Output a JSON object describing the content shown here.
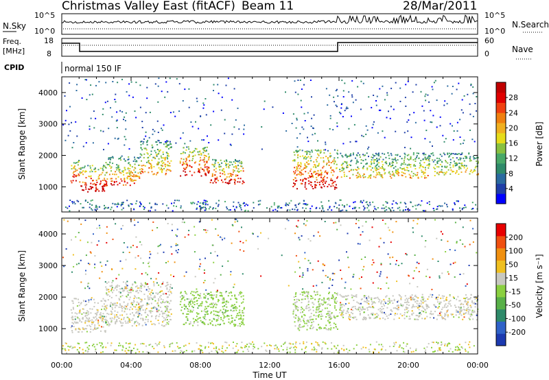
{
  "header": {
    "title": "Christmas Valley East (fitACF)",
    "beam": "Beam 11",
    "date": "28/Mar/2011"
  },
  "top_panels": {
    "nsky_label": "N.Sky",
    "nsky_ticks": [
      "10^5",
      "10^0"
    ],
    "nsearch_label": "N.Search",
    "nsearch_ticks": [
      "10^5",
      "10^0"
    ],
    "freq_label": "Freq.",
    "freq_unit": "[MHz]",
    "freq_ticks": [
      "18",
      "8"
    ],
    "nave_label": "Nave",
    "nave_ticks": [
      "60",
      "0"
    ],
    "cpid_label": "CPID",
    "cpid_text": "normal 150 IF"
  },
  "chart_data": [
    {
      "type": "heatmap",
      "name": "power",
      "ylabel": "Slant Range [km]",
      "xlabel": "Time UT",
      "x_ticks": [
        "00:00",
        "04:00",
        "08:00",
        "12:00",
        "16:00",
        "20:00",
        "00:00"
      ],
      "xlim_hours": [
        0,
        24
      ],
      "y_ticks": [
        1000,
        2000,
        3000,
        4000
      ],
      "ylim_km": [
        200,
        4500
      ],
      "colorbar": {
        "label": "Power [dB]",
        "ticks": [
          "28",
          "24",
          "20",
          "16",
          "12",
          "8",
          "4"
        ],
        "colors": [
          "#0000ff",
          "#1f3fa8",
          "#2a6aa0",
          "#2e8a6a",
          "#48a868",
          "#88c040",
          "#e6dc1a",
          "#f0b020",
          "#f08010",
          "#f04010",
          "#e00000",
          "#c00000"
        ]
      },
      "bands": [
        {
          "t0": 0.5,
          "t1": 1.0,
          "r0": 1150,
          "r1": 1900,
          "level": 0.8
        },
        {
          "t0": 1.0,
          "t1": 2.5,
          "r0": 850,
          "r1": 1700,
          "level": 0.9
        },
        {
          "t0": 2.5,
          "t1": 4.5,
          "r0": 1050,
          "r1": 2000,
          "level": 0.7
        },
        {
          "t0": 4.5,
          "t1": 6.3,
          "r0": 1400,
          "r1": 2500,
          "level": 0.6
        },
        {
          "t0": 6.8,
          "t1": 8.5,
          "r0": 1350,
          "r1": 2300,
          "level": 0.85
        },
        {
          "t0": 8.5,
          "t1": 10.5,
          "r0": 1100,
          "r1": 1900,
          "level": 0.8
        },
        {
          "t0": 13.3,
          "t1": 15.9,
          "r0": 950,
          "r1": 2200,
          "level": 0.85
        },
        {
          "t0": 16.0,
          "t1": 21.5,
          "r0": 1300,
          "r1": 2100,
          "level": 0.55
        },
        {
          "t0": 21.5,
          "t1": 24.0,
          "r0": 1400,
          "r1": 2100,
          "level": 0.5
        }
      ]
    },
    {
      "type": "heatmap",
      "name": "velocity",
      "ylabel": "Slant Range [km]",
      "xlabel": "Time UT",
      "x_ticks": [
        "00:00",
        "04:00",
        "08:00",
        "12:00",
        "16:00",
        "20:00",
        "00:00"
      ],
      "xlim_hours": [
        0,
        24
      ],
      "y_ticks": [
        1000,
        2000,
        3000,
        4000
      ],
      "ylim_km": [
        200,
        4500
      ],
      "colorbar": {
        "label": "Velocity [m s⁻¹]",
        "ticks": [
          "200",
          "100",
          "50",
          "15",
          "-15",
          "-50",
          "-100",
          "-200"
        ],
        "colors": [
          "#1c3ab0",
          "#2f62c8",
          "#2e8a6a",
          "#58b048",
          "#8ad040",
          "#c8c8c0",
          "#f0c020",
          "#f09010",
          "#f05010",
          "#e80000"
        ]
      },
      "bands": [
        {
          "t0": 0.5,
          "t1": 2.5,
          "r0": 900,
          "r1": 2000,
          "level": 0.5
        },
        {
          "t0": 2.5,
          "t1": 6.3,
          "r0": 1100,
          "r1": 2500,
          "level": 0.5
        },
        {
          "t0": 6.8,
          "t1": 10.5,
          "r0": 1100,
          "r1": 2200,
          "level": 0.35
        },
        {
          "t0": 13.3,
          "t1": 15.9,
          "r0": 950,
          "r1": 2200,
          "level": 0.42
        },
        {
          "t0": 16.0,
          "t1": 24.0,
          "r0": 1300,
          "r1": 2100,
          "level": 0.5
        }
      ]
    }
  ]
}
